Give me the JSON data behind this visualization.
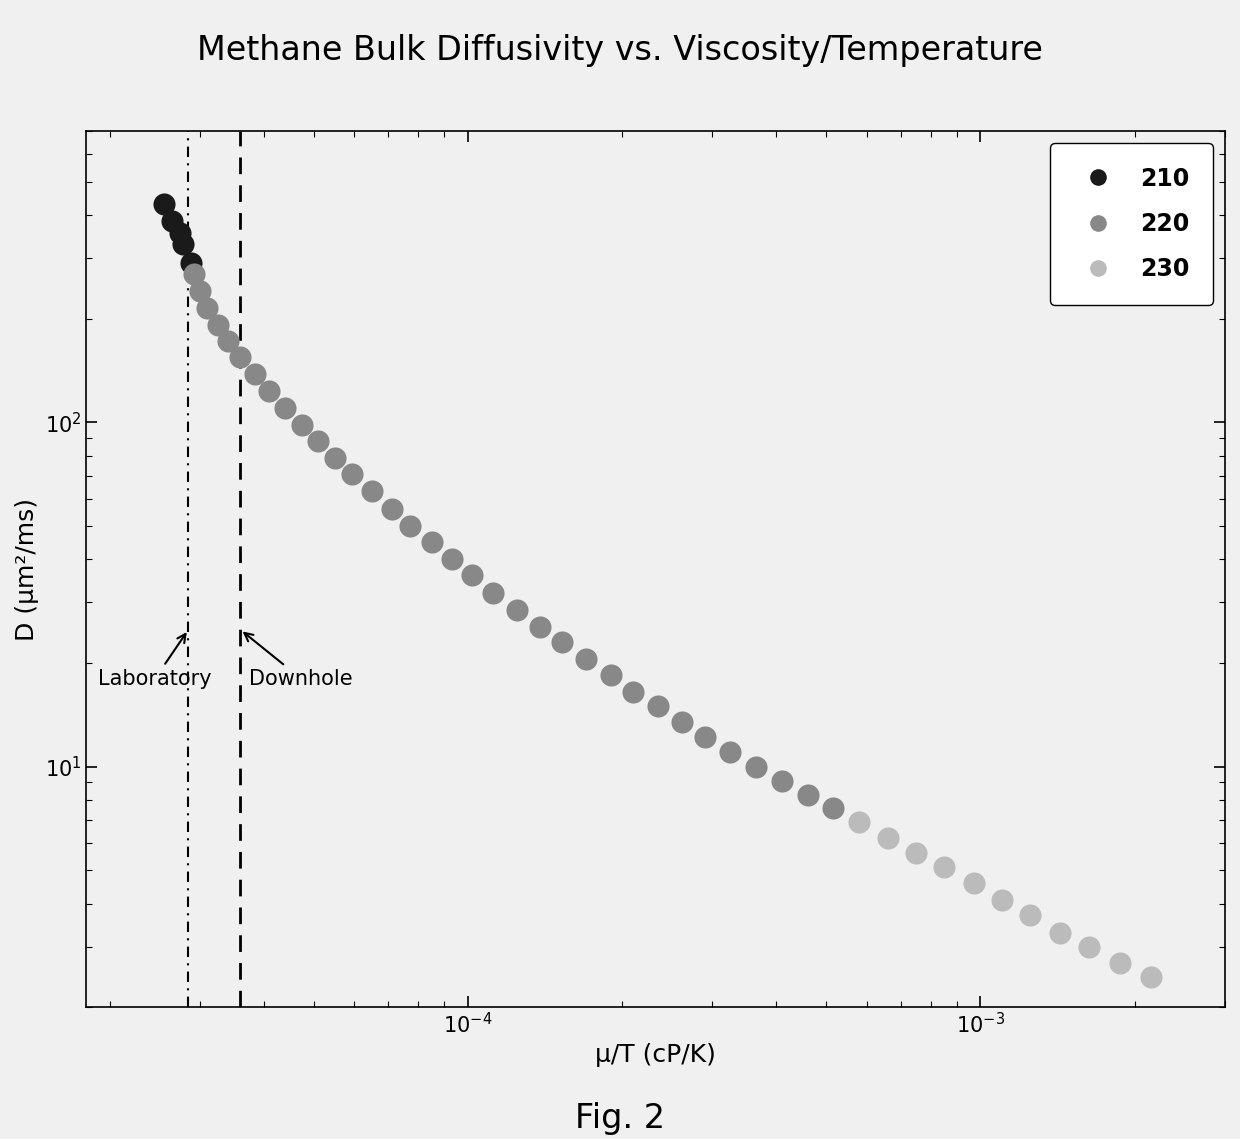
{
  "title": "Methane Bulk Diffusivity vs. Viscosity/Temperature",
  "xlabel": "μ/T (cP/K)",
  "ylabel": "D (μm²/ms)",
  "fig_caption": "Fig. 2",
  "xlim": [
    1.8e-05,
    0.003
  ],
  "ylim": [
    2.0,
    700
  ],
  "lab_line_x": 2.85e-05,
  "downhole_line_x": 3.6e-05,
  "series": [
    {
      "label": "210",
      "marker_color": "#1a1a1a",
      "points": [
        [
          2.55e-05,
          430
        ],
        [
          2.65e-05,
          385
        ],
        [
          2.78e-05,
          330
        ],
        [
          2.88e-05,
          290
        ],
        [
          2.75e-05,
          355
        ]
      ]
    },
    {
      "label": "220",
      "marker_color": "#888888",
      "points": [
        [
          2.92e-05,
          270
        ],
        [
          3e-05,
          240
        ],
        [
          3.1e-05,
          215
        ],
        [
          3.25e-05,
          192
        ],
        [
          3.4e-05,
          172
        ],
        [
          3.6e-05,
          155
        ],
        [
          3.85e-05,
          138
        ],
        [
          4.1e-05,
          123
        ],
        [
          4.4e-05,
          110
        ],
        [
          4.75e-05,
          98
        ],
        [
          5.1e-05,
          88
        ],
        [
          5.5e-05,
          79
        ],
        [
          5.95e-05,
          71
        ],
        [
          6.5e-05,
          63
        ],
        [
          7.1e-05,
          56
        ],
        [
          7.7e-05,
          50
        ],
        [
          8.5e-05,
          45
        ],
        [
          9.3e-05,
          40
        ],
        [
          0.000102,
          36
        ],
        [
          0.000112,
          32
        ],
        [
          0.000125,
          28.5
        ],
        [
          0.000138,
          25.5
        ],
        [
          0.000153,
          23
        ],
        [
          0.00017,
          20.5
        ],
        [
          0.00019,
          18.5
        ],
        [
          0.00021,
          16.5
        ],
        [
          0.000235,
          15.0
        ],
        [
          0.000262,
          13.5
        ],
        [
          0.00029,
          12.2
        ],
        [
          0.000325,
          11.0
        ],
        [
          0.000365,
          10.0
        ],
        [
          0.00041,
          9.1
        ],
        [
          0.00046,
          8.3
        ],
        [
          0.000515,
          7.6
        ]
      ]
    },
    {
      "label": "230",
      "marker_color": "#bbbbbb",
      "points": [
        [
          0.00058,
          6.9
        ],
        [
          0.00066,
          6.2
        ],
        [
          0.00075,
          5.6
        ],
        [
          0.00085,
          5.1
        ],
        [
          0.00097,
          4.6
        ],
        [
          0.0011,
          4.1
        ],
        [
          0.00125,
          3.7
        ],
        [
          0.00143,
          3.3
        ],
        [
          0.00163,
          3.0
        ],
        [
          0.00187,
          2.7
        ],
        [
          0.00215,
          2.45
        ]
      ]
    }
  ],
  "background_color": "#f0f0f0",
  "plot_background_color": "#f0f0f0",
  "border_color": "#000000",
  "title_fontsize": 24,
  "label_fontsize": 18,
  "legend_fontsize": 17,
  "caption_fontsize": 24,
  "marker_size": 13
}
